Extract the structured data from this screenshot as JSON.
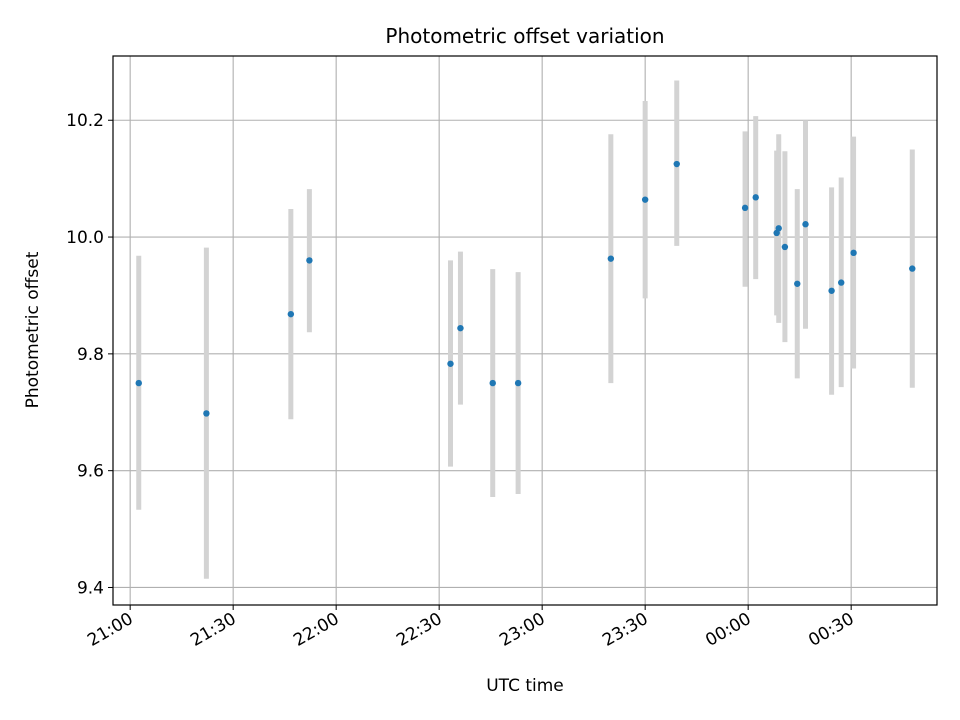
{
  "chart_data": {
    "type": "scatter",
    "title": "Photometric offset variation",
    "xlabel": "UTC time",
    "ylabel": "Photometric offset",
    "xlim": [
      "20:55",
      "00:55"
    ],
    "ylim": [
      9.37,
      10.31
    ],
    "grid": true,
    "x_ticks": [
      "21:00",
      "21:30",
      "22:00",
      "22:30",
      "23:00",
      "23:30",
      "00:00",
      "00:30"
    ],
    "y_ticks": [
      9.4,
      9.6,
      9.8,
      10.0,
      10.2
    ],
    "y_tick_labels": [
      "9.4",
      "9.6",
      "9.8",
      "10.0",
      "10.2"
    ],
    "marker_color": "#1f77b4",
    "errorbar_color": "#d3d3d3",
    "points": [
      {
        "time": "21:02:30",
        "y": 9.75,
        "err_low": 9.533,
        "err_high": 9.968
      },
      {
        "time": "21:22:12",
        "y": 9.698,
        "err_low": 9.415,
        "err_high": 9.982
      },
      {
        "time": "21:46:48",
        "y": 9.868,
        "err_low": 9.688,
        "err_high": 10.048
      },
      {
        "time": "21:52:12",
        "y": 9.96,
        "err_low": 9.837,
        "err_high": 10.082
      },
      {
        "time": "22:33:18",
        "y": 9.783,
        "err_low": 9.607,
        "err_high": 9.96
      },
      {
        "time": "22:36:12",
        "y": 9.844,
        "err_low": 9.713,
        "err_high": 9.975
      },
      {
        "time": "22:45:36",
        "y": 9.75,
        "err_low": 9.555,
        "err_high": 9.945
      },
      {
        "time": "22:53:00",
        "y": 9.75,
        "err_low": 9.56,
        "err_high": 9.94
      },
      {
        "time": "23:20:00",
        "y": 9.963,
        "err_low": 9.75,
        "err_high": 10.176
      },
      {
        "time": "23:30:00",
        "y": 10.064,
        "err_low": 9.895,
        "err_high": 10.233
      },
      {
        "time": "23:39:12",
        "y": 10.125,
        "err_low": 9.985,
        "err_high": 10.268
      },
      {
        "time": "23:59:06",
        "y": 10.05,
        "err_low": 9.915,
        "err_high": 10.181
      },
      {
        "time": "00:02:12",
        "y": 10.068,
        "err_low": 9.928,
        "err_high": 10.207
      },
      {
        "time": "00:08:18",
        "y": 10.007,
        "err_low": 9.866,
        "err_high": 10.148
      },
      {
        "time": "00:08:54",
        "y": 10.015,
        "err_low": 9.853,
        "err_high": 10.176
      },
      {
        "time": "00:10:42",
        "y": 9.983,
        "err_low": 9.82,
        "err_high": 10.147
      },
      {
        "time": "00:14:18",
        "y": 9.92,
        "err_low": 9.758,
        "err_high": 10.082
      },
      {
        "time": "00:16:42",
        "y": 10.022,
        "err_low": 9.843,
        "err_high": 10.2
      },
      {
        "time": "00:24:18",
        "y": 9.908,
        "err_low": 9.73,
        "err_high": 10.085
      },
      {
        "time": "00:27:06",
        "y": 9.922,
        "err_low": 9.743,
        "err_high": 10.102
      },
      {
        "time": "00:30:42",
        "y": 9.973,
        "err_low": 9.775,
        "err_high": 10.172
      },
      {
        "time": "00:47:48",
        "y": 9.946,
        "err_low": 9.742,
        "err_high": 10.15
      }
    ]
  }
}
